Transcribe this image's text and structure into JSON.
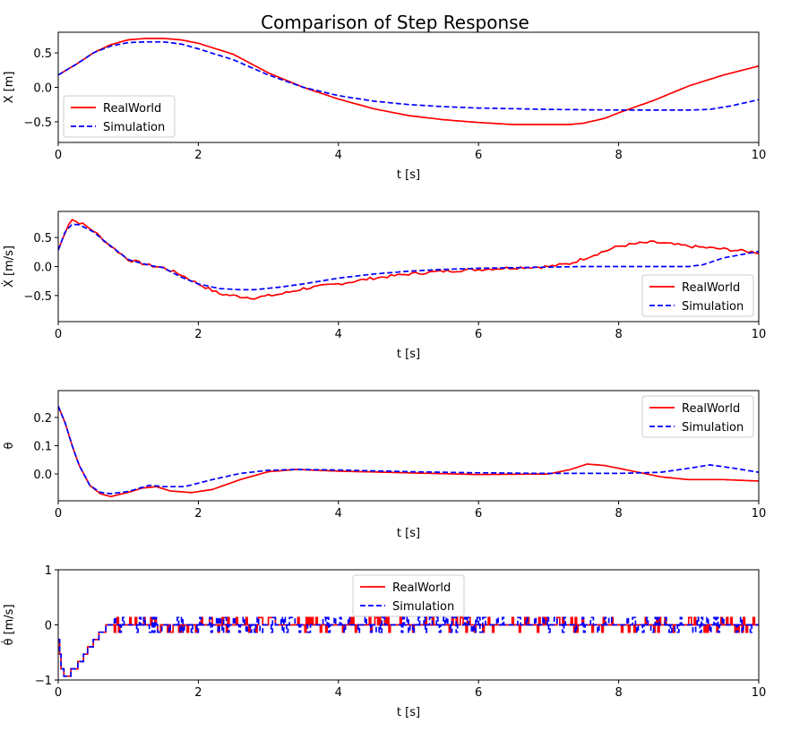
{
  "figure": {
    "title": "Comparison of Step Response"
  },
  "colors": {
    "realworld": "#ff0000",
    "simulation": "#0000ff",
    "axis": "#000000",
    "legend_border": "#cccccc"
  },
  "chart_data": [
    {
      "type": "line",
      "id": "position",
      "xlabel": "t [s]",
      "ylabel": "X [m]",
      "xlim": [
        0,
        10
      ],
      "ylim": [
        -0.8,
        0.8
      ],
      "xticks": [
        0,
        2,
        4,
        6,
        8,
        10
      ],
      "yticks": [
        -0.5,
        0.0,
        0.5
      ],
      "ytick_labels": [
        "−0.5",
        "0.0",
        "0.5"
      ],
      "grid": false,
      "legend": "lower-left",
      "series": [
        {
          "name": "RealWorld",
          "style": "solid",
          "color": "#ff0000",
          "x": [
            0,
            0.25,
            0.5,
            0.75,
            1,
            1.25,
            1.5,
            1.75,
            2,
            2.5,
            3,
            3.5,
            4,
            4.5,
            5,
            5.5,
            6,
            6.5,
            7,
            7.3,
            7.5,
            7.8,
            8,
            8.5,
            9,
            9.5,
            10
          ],
          "y": [
            0.18,
            0.33,
            0.5,
            0.62,
            0.69,
            0.71,
            0.71,
            0.69,
            0.64,
            0.48,
            0.21,
            0.0,
            -0.17,
            -0.31,
            -0.41,
            -0.47,
            -0.51,
            -0.54,
            -0.54,
            -0.54,
            -0.52,
            -0.45,
            -0.37,
            -0.19,
            0.02,
            0.18,
            0.31
          ]
        },
        {
          "name": "Simulation",
          "style": "dashed",
          "color": "#0000ff",
          "x": [
            0,
            0.25,
            0.5,
            0.75,
            1,
            1.25,
            1.5,
            1.75,
            2,
            2.5,
            3,
            3.5,
            4,
            4.5,
            5,
            5.5,
            6,
            7,
            8,
            8.5,
            9,
            9.3,
            9.6,
            10
          ],
          "y": [
            0.18,
            0.33,
            0.5,
            0.6,
            0.65,
            0.66,
            0.66,
            0.63,
            0.56,
            0.4,
            0.18,
            0.0,
            -0.12,
            -0.2,
            -0.25,
            -0.28,
            -0.3,
            -0.32,
            -0.33,
            -0.33,
            -0.33,
            -0.32,
            -0.27,
            -0.18
          ]
        }
      ]
    },
    {
      "type": "line",
      "id": "velocity",
      "xlabel": "t [s]",
      "ylabel": "Ẋ [m/s]",
      "xlim": [
        0,
        10
      ],
      "ylim": [
        -0.95,
        0.95
      ],
      "xticks": [
        0,
        2,
        4,
        6,
        8,
        10
      ],
      "yticks": [
        -0.5,
        0.0,
        0.5
      ],
      "ytick_labels": [
        "−0.5",
        "0.0",
        "0.5"
      ],
      "grid": false,
      "legend": "lower-right",
      "series": [
        {
          "name": "RealWorld",
          "style": "solid",
          "color": "#ff0000",
          "x": [
            0,
            0.1,
            0.18,
            0.25,
            0.35,
            0.5,
            0.7,
            1,
            1.3,
            1.5,
            1.75,
            2,
            2.3,
            2.6,
            2.8,
            3.2,
            3.5,
            4,
            4.5,
            5,
            5.5,
            6,
            6.5,
            7,
            7.3,
            7.6,
            8,
            8.3,
            8.5,
            9,
            9.5,
            10
          ],
          "y": [
            0.28,
            0.6,
            0.82,
            0.78,
            0.73,
            0.62,
            0.4,
            0.12,
            0.02,
            -0.02,
            -0.14,
            -0.3,
            -0.47,
            -0.52,
            -0.54,
            -0.47,
            -0.38,
            -0.3,
            -0.2,
            -0.13,
            -0.08,
            -0.05,
            -0.02,
            0.0,
            0.05,
            0.18,
            0.35,
            0.4,
            0.42,
            0.35,
            0.3,
            0.24
          ]
        },
        {
          "name": "Simulation",
          "style": "dashed",
          "color": "#0000ff",
          "x": [
            0,
            0.1,
            0.2,
            0.3,
            0.5,
            0.7,
            1,
            1.3,
            1.5,
            1.75,
            2,
            2.3,
            2.6,
            2.8,
            3.2,
            3.5,
            4,
            4.5,
            5,
            5.5,
            6,
            6.5,
            7,
            7.5,
            8,
            8.5,
            9,
            9.2,
            9.5,
            10
          ],
          "y": [
            0.28,
            0.6,
            0.73,
            0.72,
            0.6,
            0.4,
            0.12,
            0.02,
            -0.02,
            -0.18,
            -0.3,
            -0.38,
            -0.4,
            -0.4,
            -0.35,
            -0.3,
            -0.2,
            -0.13,
            -0.08,
            -0.05,
            -0.03,
            -0.02,
            -0.01,
            0.0,
            0.0,
            0.0,
            0.0,
            0.03,
            0.15,
            0.26
          ]
        }
      ]
    },
    {
      "type": "line",
      "id": "angle",
      "xlabel": "t [s]",
      "ylabel": "θ",
      "xlim": [
        0,
        10
      ],
      "ylim": [
        -0.095,
        0.295
      ],
      "xticks": [
        0,
        2,
        4,
        6,
        8,
        10
      ],
      "yticks": [
        0.0,
        0.1,
        0.2
      ],
      "ytick_labels": [
        "0.0",
        "0.1",
        "0.2"
      ],
      "grid": false,
      "legend": "upper-right",
      "series": [
        {
          "name": "RealWorld",
          "style": "solid",
          "color": "#ff0000",
          "x": [
            0,
            0.1,
            0.2,
            0.3,
            0.45,
            0.6,
            0.75,
            1,
            1.2,
            1.4,
            1.6,
            1.9,
            2.2,
            2.6,
            3,
            3.4,
            4,
            5,
            6,
            7,
            7.3,
            7.55,
            7.8,
            8.2,
            8.6,
            9,
            9.5,
            10
          ],
          "y": [
            0.24,
            0.18,
            0.1,
            0.03,
            -0.04,
            -0.07,
            -0.08,
            -0.065,
            -0.05,
            -0.045,
            -0.06,
            -0.066,
            -0.055,
            -0.02,
            0.008,
            0.016,
            0.01,
            0.004,
            -0.002,
            0.0,
            0.015,
            0.035,
            0.03,
            0.01,
            -0.01,
            -0.02,
            -0.02,
            -0.025
          ]
        },
        {
          "name": "Simulation",
          "style": "dashed",
          "color": "#0000ff",
          "x": [
            0,
            0.1,
            0.2,
            0.3,
            0.45,
            0.6,
            0.75,
            1,
            1.3,
            1.5,
            1.8,
            2.2,
            2.6,
            3,
            3.4,
            4,
            5,
            6,
            7,
            8,
            8.6,
            9,
            9.3,
            9.6,
            10
          ],
          "y": [
            0.24,
            0.18,
            0.1,
            0.03,
            -0.04,
            -0.065,
            -0.07,
            -0.062,
            -0.04,
            -0.045,
            -0.045,
            -0.02,
            0.002,
            0.013,
            0.016,
            0.014,
            0.008,
            0.004,
            0.002,
            0.002,
            0.006,
            0.02,
            0.032,
            0.022,
            0.006
          ]
        }
      ]
    },
    {
      "type": "line",
      "id": "angular_velocity",
      "xlabel": "t [s]",
      "ylabel": "θ̇ [m/s]",
      "xlim": [
        0,
        10
      ],
      "ylim": [
        -1,
        1
      ],
      "xticks": [
        0,
        2,
        4,
        6,
        8,
        10
      ],
      "yticks": [
        -1,
        0,
        1
      ],
      "ytick_labels": [
        "−1",
        "0",
        "1"
      ],
      "grid": false,
      "legend": "upper-center",
      "note": "Quantized signal (steps of ~0.13); both series chatter between 0 and ±0.13 after 0.75 s",
      "series": [
        {
          "name": "RealWorld",
          "style": "solid",
          "color": "#ff0000",
          "x": [
            0,
            0.05,
            0.1,
            0.2,
            0.3,
            0.4,
            0.5,
            0.6,
            0.7,
            0.8,
            1.0,
            1.5,
            2,
            3,
            4,
            5,
            6,
            7,
            7.5,
            8,
            8.5,
            9,
            9.5,
            10
          ],
          "y": [
            -0.3,
            -0.85,
            -0.9,
            -0.85,
            -0.7,
            -0.5,
            -0.3,
            -0.15,
            -0.03,
            0.08,
            0.05,
            0.0,
            0.0,
            0.0,
            0.0,
            0.0,
            0.0,
            0.0,
            0.05,
            -0.05,
            0.0,
            0.0,
            0.0,
            -0.05
          ]
        },
        {
          "name": "Simulation",
          "style": "dashed",
          "color": "#0000ff",
          "x": [
            0,
            0.05,
            0.1,
            0.2,
            0.3,
            0.4,
            0.5,
            0.6,
            0.7,
            0.8,
            1.0,
            1.5,
            2,
            3,
            4,
            5,
            6,
            7,
            8,
            8.5,
            9,
            9.5,
            10
          ],
          "y": [
            -0.3,
            -0.85,
            -0.9,
            -0.85,
            -0.7,
            -0.5,
            -0.3,
            -0.15,
            -0.03,
            0.1,
            0.08,
            0.0,
            0.05,
            0.02,
            0.0,
            0.0,
            0.0,
            0.0,
            0.0,
            0.05,
            0.0,
            -0.05,
            -0.05
          ]
        }
      ]
    }
  ]
}
